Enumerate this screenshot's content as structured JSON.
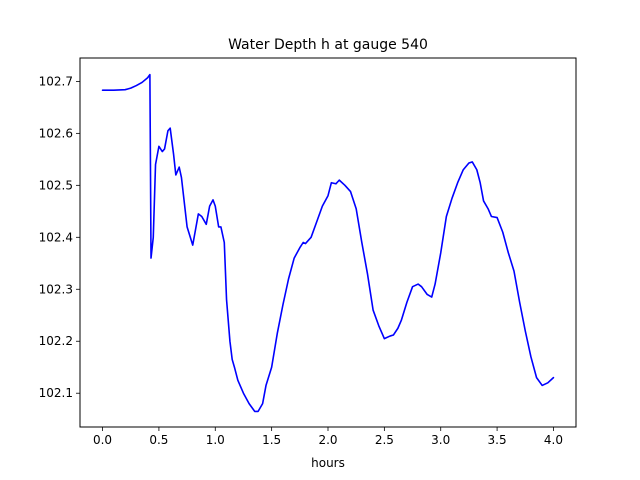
{
  "chart_data": {
    "type": "line",
    "title": "Water Depth h at gauge 540",
    "xlabel": "hours",
    "ylabel": "",
    "xlim": [
      -0.2,
      4.2
    ],
    "ylim": [
      102.035,
      102.745
    ],
    "xticks": [
      0.0,
      0.5,
      1.0,
      1.5,
      2.0,
      2.5,
      3.0,
      3.5,
      4.0
    ],
    "xtick_labels": [
      "0.0",
      "0.5",
      "1.0",
      "1.5",
      "2.0",
      "2.5",
      "3.0",
      "3.5",
      "4.0"
    ],
    "yticks": [
      102.1,
      102.2,
      102.3,
      102.4,
      102.5,
      102.6,
      102.7
    ],
    "ytick_labels": [
      "102.1",
      "102.2",
      "102.3",
      "102.4",
      "102.5",
      "102.6",
      "102.7"
    ],
    "grid": false,
    "legend": "none",
    "series": [
      {
        "color": "#0000ff",
        "x": [
          0.0,
          0.1,
          0.2,
          0.25,
          0.3,
          0.35,
          0.4,
          0.42,
          0.425,
          0.43,
          0.45,
          0.47,
          0.5,
          0.53,
          0.55,
          0.58,
          0.6,
          0.63,
          0.65,
          0.68,
          0.7,
          0.75,
          0.8,
          0.85,
          0.88,
          0.92,
          0.95,
          0.98,
          1.0,
          1.03,
          1.05,
          1.08,
          1.1,
          1.13,
          1.15,
          1.17,
          1.2,
          1.25,
          1.3,
          1.35,
          1.38,
          1.42,
          1.45,
          1.5,
          1.55,
          1.6,
          1.65,
          1.7,
          1.75,
          1.78,
          1.8,
          1.85,
          1.9,
          1.95,
          2.0,
          2.03,
          2.07,
          2.1,
          2.15,
          2.2,
          2.25,
          2.3,
          2.35,
          2.4,
          2.45,
          2.5,
          2.55,
          2.58,
          2.62,
          2.65,
          2.7,
          2.75,
          2.8,
          2.83,
          2.88,
          2.92,
          2.95,
          3.0,
          3.05,
          3.1,
          3.15,
          3.2,
          3.25,
          3.28,
          3.32,
          3.35,
          3.38,
          3.42,
          3.45,
          3.5,
          3.55,
          3.6,
          3.65,
          3.7,
          3.75,
          3.8,
          3.85,
          3.9,
          3.95,
          4.0
        ],
        "y": [
          102.683,
          102.683,
          102.684,
          102.687,
          102.692,
          102.698,
          102.707,
          102.713,
          102.54,
          102.36,
          102.4,
          102.54,
          102.575,
          102.565,
          102.57,
          102.605,
          102.61,
          102.56,
          102.52,
          102.535,
          102.515,
          102.42,
          102.385,
          102.445,
          102.44,
          102.425,
          102.46,
          102.472,
          102.46,
          102.42,
          102.42,
          102.39,
          102.28,
          102.2,
          102.165,
          102.15,
          102.125,
          102.1,
          102.08,
          102.065,
          102.065,
          102.08,
          102.115,
          102.15,
          102.215,
          102.27,
          102.32,
          102.36,
          102.38,
          102.39,
          102.388,
          102.4,
          102.43,
          102.46,
          102.48,
          102.505,
          102.503,
          102.51,
          102.5,
          102.488,
          102.455,
          102.39,
          102.33,
          102.26,
          102.23,
          102.205,
          102.21,
          102.212,
          102.225,
          102.24,
          102.275,
          102.305,
          102.31,
          102.305,
          102.29,
          102.285,
          102.31,
          102.37,
          102.44,
          102.475,
          102.505,
          102.53,
          102.543,
          102.545,
          102.53,
          102.505,
          102.47,
          102.455,
          102.44,
          102.438,
          102.41,
          102.37,
          102.335,
          102.275,
          102.22,
          102.17,
          102.13,
          102.115,
          102.12,
          102.13
        ]
      }
    ]
  }
}
